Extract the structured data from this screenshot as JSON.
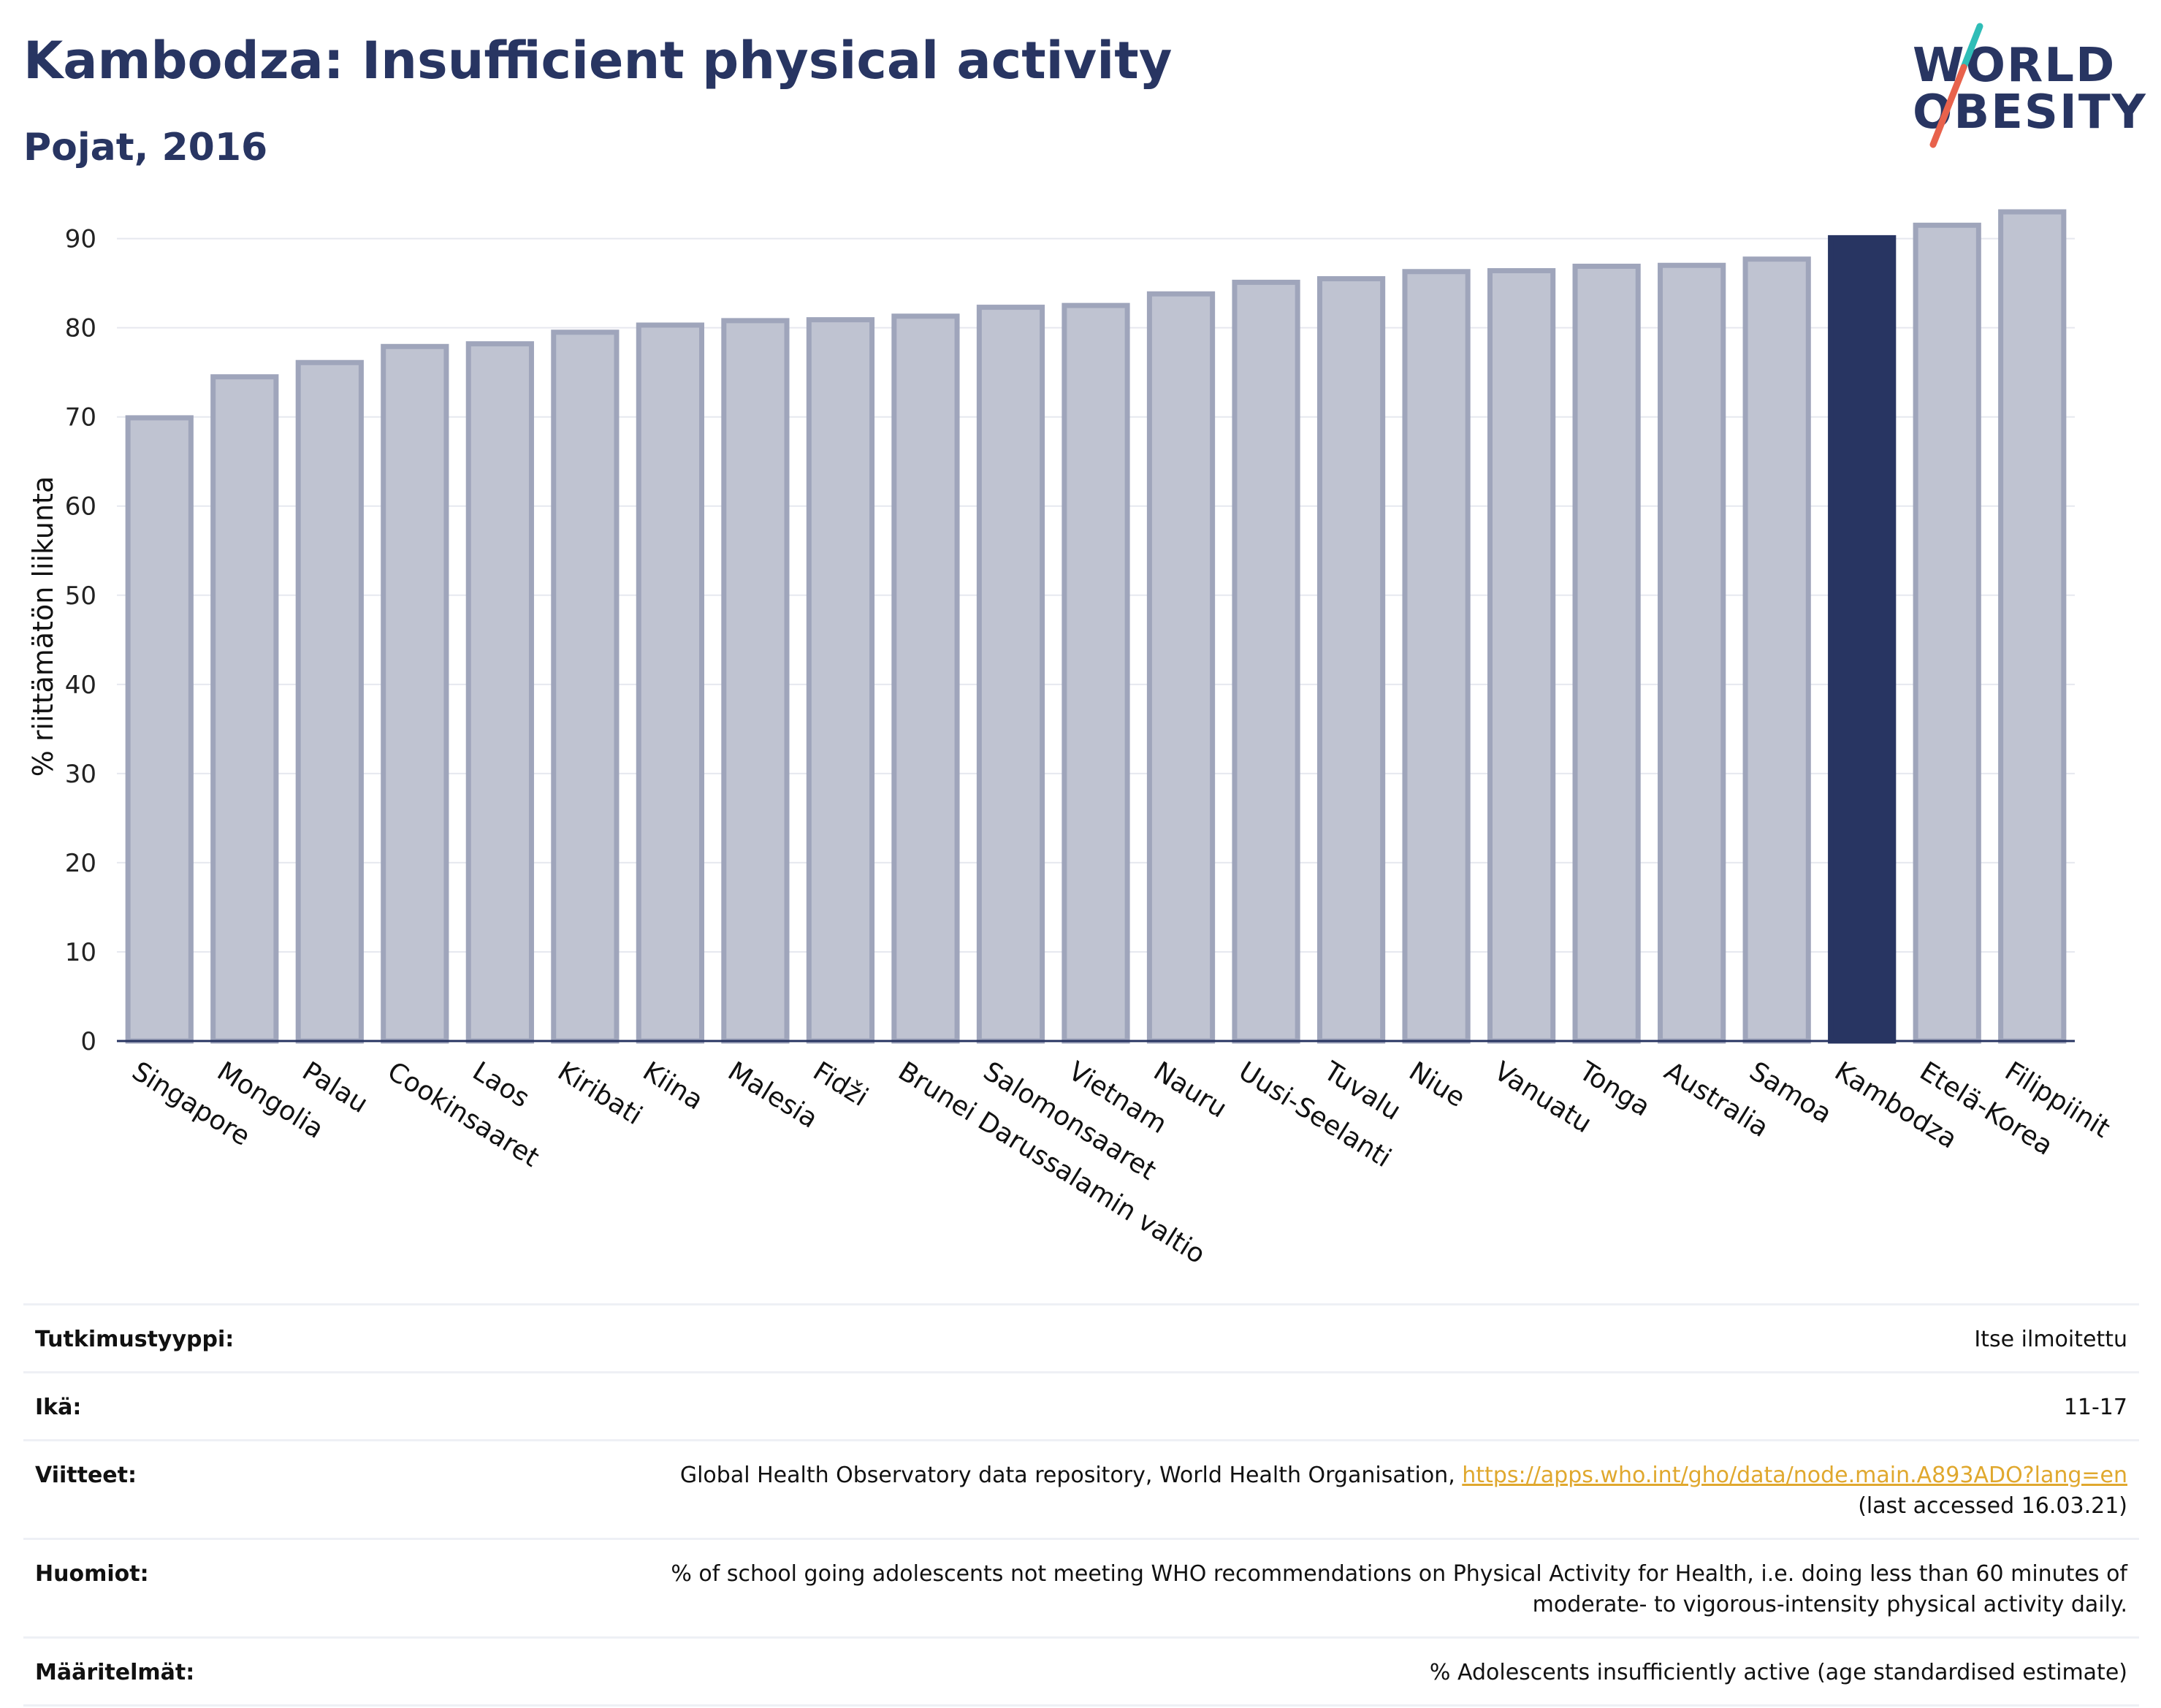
{
  "header": {
    "title": "Kambodza: Insufficient physical activity",
    "subtitle": "Pojat, 2016"
  },
  "logo": {
    "line1": "WORLD",
    "line2": "OBESITY",
    "slash_colors": [
      "#2fbdb7",
      "#e8624c"
    ]
  },
  "colors": {
    "highlight": "#283562",
    "bar_fill": "#bfc3d1",
    "bar_stroke": "#9fa5bb",
    "link": "#e0a82e"
  },
  "chart_data": {
    "type": "bar",
    "title": "Kambodza: Insufficient physical activity",
    "subtitle": "Pojat, 2016",
    "xlabel": "",
    "ylabel": "% riittämätön liikunta",
    "ylim": [
      0,
      93
    ],
    "yticks": [
      0,
      10,
      20,
      30,
      40,
      50,
      60,
      70,
      80,
      90
    ],
    "grid": true,
    "highlight_category": "Kambodza",
    "categories": [
      "Singapore",
      "Mongolia",
      "Palau",
      "Cookinsaaret",
      "Laos",
      "Kiribati",
      "Kiina",
      "Malesia",
      "Fidži",
      "Brunei Darussalamin valtio",
      "Salomonsaaret",
      "Vietnam",
      "Nauru",
      "Uusi-Seelanti",
      "Tuvalu",
      "Niue",
      "Vanuatu",
      "Tonga",
      "Australia",
      "Samoa",
      "Kambodza",
      "Etelä-Korea",
      "Filippiinit"
    ],
    "values": [
      69.9,
      74.5,
      76.1,
      77.9,
      78.2,
      79.5,
      80.3,
      80.8,
      80.9,
      81.3,
      82.3,
      82.5,
      83.8,
      85.1,
      85.5,
      86.3,
      86.4,
      86.9,
      87.0,
      87.7,
      90.1,
      91.5,
      93.0
    ]
  },
  "info": {
    "rows": [
      {
        "label": "Tutkimustyyppi:",
        "value": "Itse ilmoitettu"
      },
      {
        "label": "Ikä:",
        "value": "11-17"
      },
      {
        "label": "Viitteet:",
        "value": "Global Health Observatory data repository, World Health Organisation, ",
        "link": "https://apps.who.int/gho/data/node.main.A893ADO?lang=en",
        "value2": "(last accessed 16.03.21)"
      },
      {
        "label": "Huomiot:",
        "value": "% of school going adolescents not meeting WHO recommendations on Physical Activity for Health, i.e. doing less than 60 minutes of",
        "value2": "moderate- to vigorous-intensity physical activity daily."
      },
      {
        "label": "Määritelmät:",
        "value": "% Adolescents insufficiently active (age standardised estimate)"
      }
    ]
  }
}
